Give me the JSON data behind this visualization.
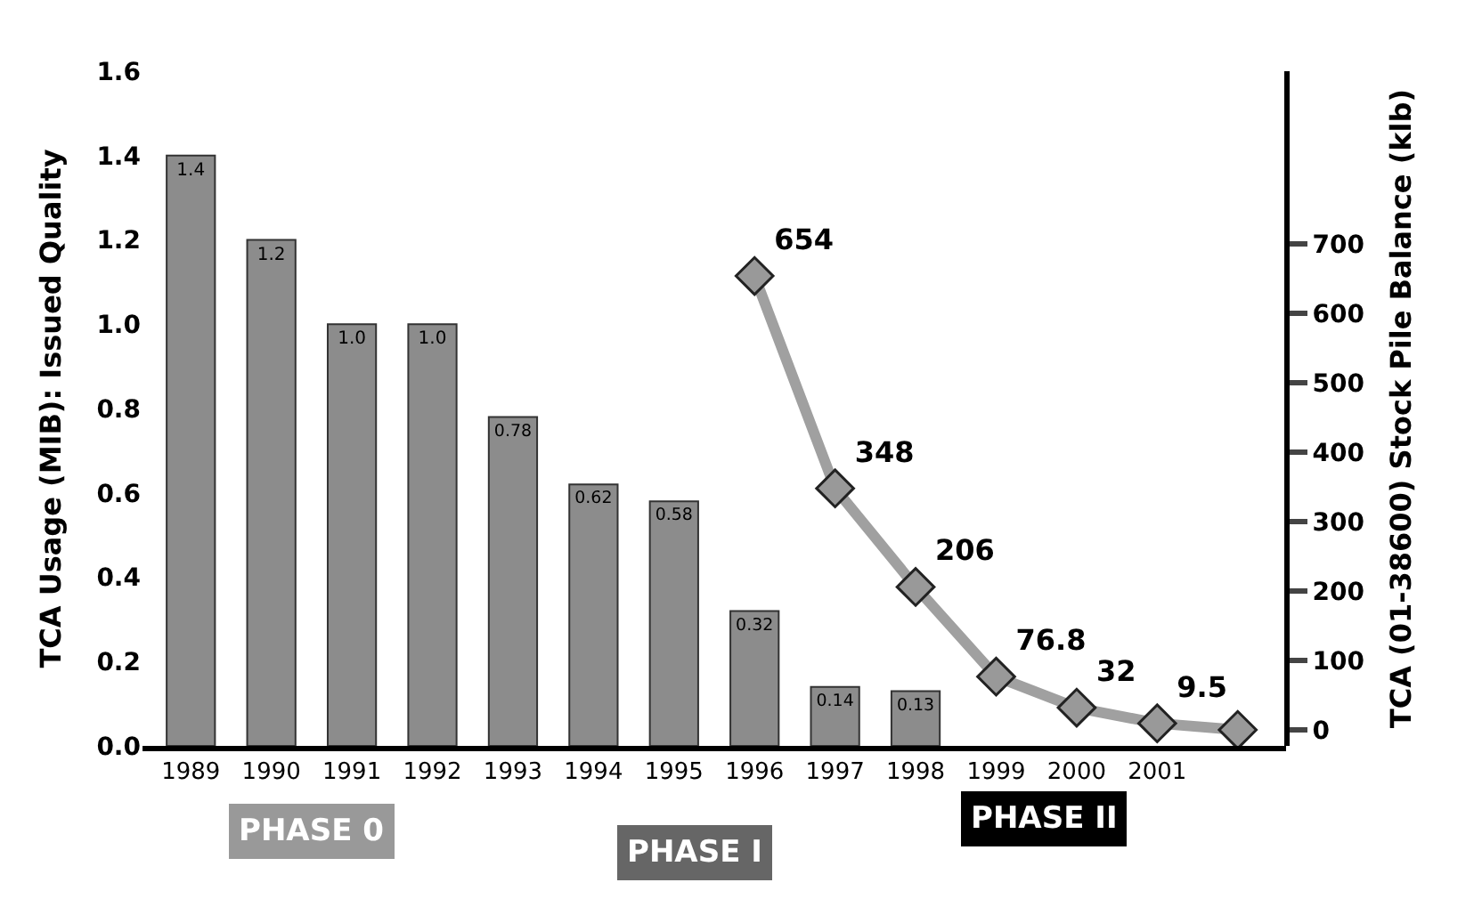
{
  "chart_data": {
    "type": "bar",
    "categories": [
      "1989",
      "1990",
      "1991",
      "1992",
      "1993",
      "1994",
      "1995",
      "1996",
      "1997",
      "1998",
      "1999",
      "2000",
      "2001",
      null
    ],
    "ylabel": "TCA Usage (MIB): Issued Quality",
    "y2label": "TCA (01-38600) Stock Pile Balance (klb)",
    "ylim": [
      0,
      1.6
    ],
    "yticks": [
      {
        "value": 0,
        "label": "0.0"
      },
      0.2,
      0.4,
      0.6,
      0.8,
      {
        "value": 1,
        "label": "1.0"
      },
      1.2,
      1.4,
      1.6
    ],
    "y2lim": [
      -23,
      949
    ],
    "y2ticks": [
      0,
      100,
      200,
      300,
      400,
      500,
      600,
      700
    ],
    "series": [
      {
        "color": "#8c8c8c",
        "values": [
          1.4,
          1.2,
          1.0,
          1.0,
          0.78,
          0.62,
          0.58,
          0.32,
          0.14,
          0.13,
          null,
          null,
          null,
          null
        ],
        "value_labels": [
          "1.4",
          "1.2",
          "1.0",
          "1.0",
          "0.78",
          "0.62",
          "0.58",
          "0.32",
          "0.14",
          "0.13",
          null,
          null,
          null,
          null
        ]
      },
      {
        "type": "line",
        "axis": "y2",
        "color": "#a0a0a0",
        "marker": "diamond",
        "values": [
          null,
          null,
          null,
          null,
          null,
          null,
          null,
          654,
          348,
          206,
          76.8,
          32,
          9.5,
          0
        ],
        "value_labels": [
          null,
          null,
          null,
          null,
          null,
          null,
          null,
          "654",
          "348",
          "206",
          "76.8",
          "32",
          "9.5",
          null
        ]
      }
    ],
    "annotations": [
      "PHASE 0",
      "PHASE I",
      "PHASE II"
    ]
  }
}
